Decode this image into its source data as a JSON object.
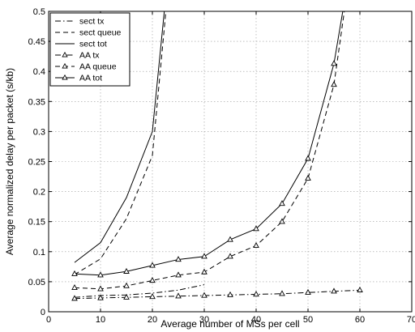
{
  "chart_data": {
    "type": "line",
    "title": "",
    "xlabel": "Average number of MSs per cell",
    "ylabel": "Average normalized delay per packet (s/kb)",
    "xlim": [
      0,
      70
    ],
    "ylim": [
      0,
      0.5
    ],
    "xticks": [
      0,
      10,
      20,
      30,
      40,
      50,
      60,
      70
    ],
    "yticks": [
      0,
      0.05,
      0.1,
      0.15,
      0.2,
      0.25,
      0.3,
      0.35,
      0.4,
      0.45,
      0.5
    ],
    "xtick_labels": [
      "0",
      "10",
      "20",
      "30",
      "40",
      "50",
      "60",
      "70"
    ],
    "ytick_labels": [
      "0",
      "0.05",
      "0.1",
      "0.15",
      "0.2",
      "0.25",
      "0.3",
      "0.35",
      "0.4",
      "0.45",
      "0.5"
    ],
    "grid": true,
    "legend_position": "top-left",
    "colors": {
      "line": "#000000",
      "grid": "#9a9a9a",
      "frame": "#000000"
    },
    "series": [
      {
        "name": "sect tx",
        "dash": "dashdot",
        "marker": "none",
        "x": [
          5,
          10,
          15,
          20,
          25,
          30
        ],
        "y": [
          0.024,
          0.027,
          0.028,
          0.031,
          0.036,
          0.045
        ]
      },
      {
        "name": "sect queue",
        "dash": "dashed",
        "marker": "none",
        "x": [
          5,
          10,
          15,
          20,
          22.6
        ],
        "y": [
          0.062,
          0.088,
          0.155,
          0.26,
          0.5
        ]
      },
      {
        "name": "sect tot",
        "dash": "solid",
        "marker": "none",
        "x": [
          5,
          10,
          15,
          20,
          22.3
        ],
        "y": [
          0.082,
          0.115,
          0.19,
          0.3,
          0.5
        ]
      },
      {
        "name": "AA tx",
        "dash": "dashdot",
        "marker": "triangle",
        "x": [
          5,
          10,
          15,
          20,
          25,
          30,
          35,
          40,
          45,
          50,
          55,
          60
        ],
        "y": [
          0.022,
          0.023,
          0.024,
          0.025,
          0.026,
          0.027,
          0.028,
          0.029,
          0.03,
          0.032,
          0.034,
          0.036
        ]
      },
      {
        "name": "AA queue",
        "dash": "dashed",
        "marker": "triangle",
        "x": [
          5,
          10,
          15,
          20,
          25,
          30,
          35,
          40,
          45,
          50,
          55,
          57
        ],
        "y": [
          0.04,
          0.038,
          0.043,
          0.052,
          0.061,
          0.066,
          0.092,
          0.11,
          0.15,
          0.222,
          0.378,
          0.5
        ]
      },
      {
        "name": "AA tot",
        "dash": "solid",
        "marker": "triangle",
        "x": [
          5,
          10,
          15,
          20,
          25,
          30,
          35,
          40,
          45,
          50,
          55,
          56.7
        ],
        "y": [
          0.063,
          0.061,
          0.067,
          0.077,
          0.087,
          0.092,
          0.12,
          0.138,
          0.18,
          0.255,
          0.413,
          0.5
        ]
      }
    ]
  }
}
